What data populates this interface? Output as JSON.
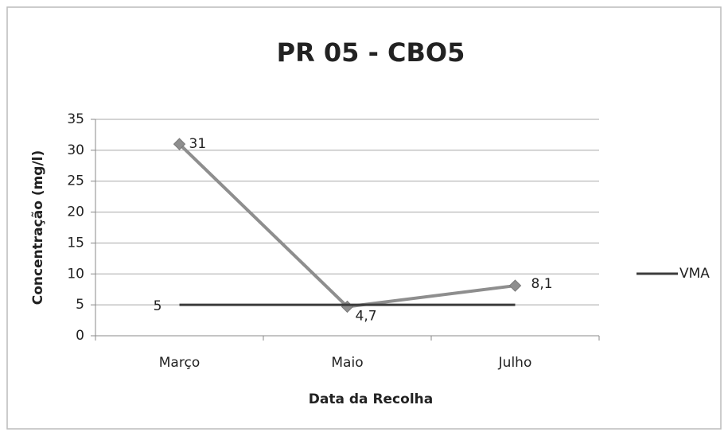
{
  "chart_data": {
    "type": "line",
    "title": "PR 05 - CBO5",
    "xlabel": "Data da Recolha",
    "ylabel": "Concentração (mg/l)",
    "categories": [
      "Março",
      "Maio",
      "Julho"
    ],
    "series": [
      {
        "color": "#8e8e8e",
        "marker": "diamond",
        "values": [
          31,
          4.7,
          8.1
        ],
        "value_labels": [
          "31",
          "4,7",
          "8,1"
        ]
      },
      {
        "name": "VMA",
        "color": "#3c3c3c",
        "values": [
          5,
          5,
          5
        ],
        "value_labels": [
          "5",
          null,
          null
        ]
      }
    ],
    "ylim": [
      0,
      35
    ],
    "yticks": [
      0,
      5,
      10,
      15,
      20,
      25,
      30,
      35
    ],
    "grid": true,
    "legend": "right"
  }
}
